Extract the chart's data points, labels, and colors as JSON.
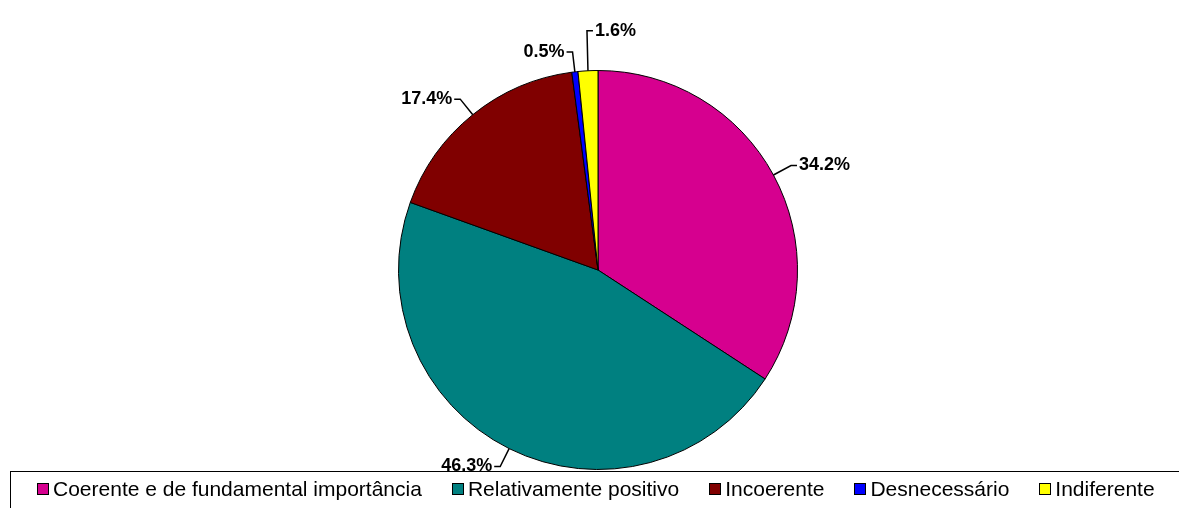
{
  "chart_data": {
    "type": "pie",
    "categories": [
      "Coerente e de fundamental importância",
      "Relativamente positivo",
      "Incoerente",
      "Desnecessário",
      "Indiferente"
    ],
    "values": [
      34.2,
      46.3,
      17.4,
      0.5,
      1.6
    ],
    "colors": [
      "#d6008f",
      "#008080",
      "#800000",
      "#0000ff",
      "#ffff00"
    ],
    "value_labels": [
      "34.2%",
      "46.3%",
      "17.4%",
      "0.5%",
      "1.6%"
    ],
    "legend": "bottom"
  }
}
